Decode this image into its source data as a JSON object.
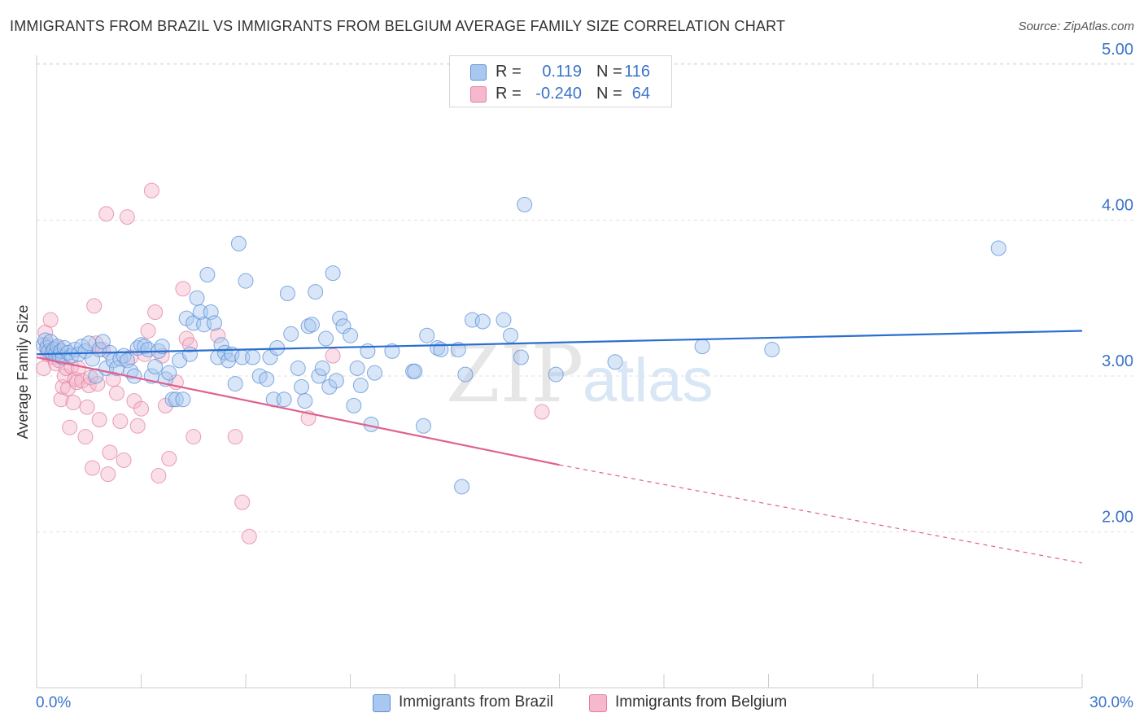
{
  "title": "IMMIGRANTS FROM BRAZIL VS IMMIGRANTS FROM BELGIUM AVERAGE FAMILY SIZE CORRELATION CHART",
  "source": "Source: ZipAtlas.com",
  "watermark": {
    "zip": "ZIP",
    "atlas": "atlas"
  },
  "colors": {
    "brazil_fill": "#a9c8f0",
    "brazil_stroke": "#5b8fd6",
    "brazil_line": "#2a6fcf",
    "belgium_fill": "#f5b8cc",
    "belgium_stroke": "#e27fa2",
    "belgium_line": "#e0608e",
    "axis_value": "#3a73c8",
    "grid": "#e2e2e2"
  },
  "legend": {
    "rows": [
      {
        "series": "brazil",
        "r_label": "R =",
        "r_value": "0.119",
        "n_label": "N =",
        "n_value": "116"
      },
      {
        "series": "belgium",
        "r_label": "R =",
        "r_value": "-0.240",
        "n_label": "N =",
        "n_value": "64"
      }
    ]
  },
  "chart_data": {
    "type": "scatter",
    "title": "IMMIGRANTS FROM BRAZIL VS IMMIGRANTS FROM BELGIUM AVERAGE FAMILY SIZE CORRELATION CHART",
    "xlabel": "",
    "ylabel": "Average Family Size",
    "xlim": [
      0,
      30
    ],
    "ylim": [
      1.0,
      5.1
    ],
    "x_tick_labels": [
      "0.0%",
      "30.0%"
    ],
    "y_ticks": [
      2.0,
      3.0,
      4.0,
      5.0
    ],
    "y_tick_labels": [
      "2.00",
      "3.00",
      "4.00",
      "5.00"
    ],
    "grid": true,
    "legend_position": "top-center",
    "series": [
      {
        "name": "Immigrants from Brazil",
        "color": "#5b8fd6",
        "trend": {
          "x": [
            0,
            30
          ],
          "y": [
            3.14,
            3.29
          ]
        },
        "points": [
          [
            0.2,
            3.2
          ],
          [
            0.25,
            3.23
          ],
          [
            0.3,
            3.18
          ],
          [
            0.35,
            3.16
          ],
          [
            0.4,
            3.22
          ],
          [
            0.45,
            3.15
          ],
          [
            0.5,
            3.17
          ],
          [
            0.55,
            3.14
          ],
          [
            0.6,
            3.19
          ],
          [
            0.65,
            3.13
          ],
          [
            0.7,
            3.16
          ],
          [
            0.75,
            3.12
          ],
          [
            0.8,
            3.18
          ],
          [
            0.9,
            3.15
          ],
          [
            1.0,
            3.13
          ],
          [
            1.1,
            3.17
          ],
          [
            1.2,
            3.14
          ],
          [
            1.3,
            3.19
          ],
          [
            1.4,
            3.16
          ],
          [
            1.5,
            3.21
          ],
          [
            1.6,
            3.11
          ],
          [
            1.7,
            3.0
          ],
          [
            1.8,
            3.17
          ],
          [
            1.9,
            3.22
          ],
          [
            2.0,
            3.05
          ],
          [
            2.1,
            3.15
          ],
          [
            2.2,
            3.1
          ],
          [
            2.3,
            3.05
          ],
          [
            2.4,
            3.11
          ],
          [
            2.5,
            3.13
          ],
          [
            2.6,
            3.1
          ],
          [
            2.7,
            3.03
          ],
          [
            2.8,
            3.0
          ],
          [
            2.9,
            3.18
          ],
          [
            3.0,
            3.2
          ],
          [
            3.1,
            3.19
          ],
          [
            3.2,
            3.17
          ],
          [
            3.3,
            3.0
          ],
          [
            3.4,
            3.06
          ],
          [
            3.5,
            3.16
          ],
          [
            3.6,
            3.19
          ],
          [
            3.7,
            2.98
          ],
          [
            3.8,
            3.02
          ],
          [
            3.9,
            2.85
          ],
          [
            4.0,
            2.85
          ],
          [
            4.1,
            3.1
          ],
          [
            4.2,
            2.85
          ],
          [
            4.3,
            3.37
          ],
          [
            4.4,
            3.14
          ],
          [
            4.5,
            3.34
          ],
          [
            4.6,
            3.5
          ],
          [
            4.7,
            3.41
          ],
          [
            4.8,
            3.33
          ],
          [
            4.9,
            3.65
          ],
          [
            5.0,
            3.41
          ],
          [
            5.1,
            3.34
          ],
          [
            5.2,
            3.12
          ],
          [
            5.3,
            3.2
          ],
          [
            5.4,
            3.15
          ],
          [
            5.5,
            3.1
          ],
          [
            5.6,
            3.14
          ],
          [
            5.7,
            2.95
          ],
          [
            5.8,
            3.85
          ],
          [
            5.9,
            3.12
          ],
          [
            6.0,
            3.61
          ],
          [
            6.2,
            3.12
          ],
          [
            6.4,
            3.0
          ],
          [
            6.6,
            2.98
          ],
          [
            6.7,
            3.12
          ],
          [
            6.8,
            2.85
          ],
          [
            6.9,
            3.18
          ],
          [
            7.1,
            2.85
          ],
          [
            7.2,
            3.53
          ],
          [
            7.3,
            3.27
          ],
          [
            7.5,
            3.05
          ],
          [
            7.6,
            2.93
          ],
          [
            7.7,
            2.84
          ],
          [
            7.8,
            3.32
          ],
          [
            7.9,
            3.33
          ],
          [
            8.0,
            3.54
          ],
          [
            8.1,
            3.0
          ],
          [
            8.2,
            3.05
          ],
          [
            8.3,
            3.24
          ],
          [
            8.4,
            2.93
          ],
          [
            8.5,
            3.66
          ],
          [
            8.6,
            2.97
          ],
          [
            8.7,
            3.37
          ],
          [
            8.8,
            3.32
          ],
          [
            9.0,
            3.26
          ],
          [
            9.1,
            2.81
          ],
          [
            9.2,
            3.05
          ],
          [
            9.3,
            2.94
          ],
          [
            9.5,
            3.16
          ],
          [
            9.6,
            2.69
          ],
          [
            9.7,
            3.02
          ],
          [
            10.2,
            3.16
          ],
          [
            10.8,
            3.03
          ],
          [
            10.85,
            3.03
          ],
          [
            11.2,
            3.26
          ],
          [
            11.5,
            3.18
          ],
          [
            11.6,
            3.17
          ],
          [
            12.1,
            3.17
          ],
          [
            12.2,
            2.29
          ],
          [
            12.3,
            3.01
          ],
          [
            12.5,
            3.36
          ],
          [
            12.8,
            3.35
          ],
          [
            13.6,
            3.26
          ],
          [
            13.9,
            3.12
          ],
          [
            14.0,
            4.1
          ],
          [
            14.9,
            3.01
          ],
          [
            16.6,
            3.09
          ],
          [
            19.1,
            3.19
          ],
          [
            21.1,
            3.17
          ],
          [
            27.6,
            3.82
          ],
          [
            11.1,
            2.68
          ],
          [
            13.4,
            3.36
          ]
        ]
      },
      {
        "name": "Immigrants from Belgium",
        "color": "#e27fa2",
        "trend": {
          "x": [
            0,
            15
          ],
          "y": [
            3.12,
            2.43
          ],
          "dashed_to": {
            "x": 30,
            "y": 1.8
          }
        },
        "points": [
          [
            0.2,
            3.05
          ],
          [
            0.25,
            3.28
          ],
          [
            0.3,
            3.2
          ],
          [
            0.35,
            3.15
          ],
          [
            0.4,
            3.36
          ],
          [
            0.5,
            3.12
          ],
          [
            0.55,
            3.08
          ],
          [
            0.6,
            3.18
          ],
          [
            0.65,
            3.1
          ],
          [
            0.7,
            2.85
          ],
          [
            0.75,
            2.93
          ],
          [
            0.8,
            3.0
          ],
          [
            0.85,
            3.05
          ],
          [
            0.9,
            2.92
          ],
          [
            0.95,
            2.67
          ],
          [
            1.0,
            3.06
          ],
          [
            1.05,
            2.83
          ],
          [
            1.1,
            2.98
          ],
          [
            1.15,
            2.96
          ],
          [
            1.2,
            3.05
          ],
          [
            1.3,
            2.97
          ],
          [
            1.4,
            2.61
          ],
          [
            1.45,
            2.8
          ],
          [
            1.5,
            2.94
          ],
          [
            1.55,
            2.99
          ],
          [
            1.6,
            2.41
          ],
          [
            1.65,
            3.45
          ],
          [
            1.7,
            3.21
          ],
          [
            1.75,
            2.95
          ],
          [
            1.8,
            2.72
          ],
          [
            1.9,
            3.17
          ],
          [
            2.0,
            4.04
          ],
          [
            2.05,
            2.37
          ],
          [
            2.1,
            2.51
          ],
          [
            2.2,
            2.98
          ],
          [
            2.3,
            2.89
          ],
          [
            2.4,
            2.71
          ],
          [
            2.5,
            2.46
          ],
          [
            2.6,
            4.02
          ],
          [
            2.7,
            3.12
          ],
          [
            2.8,
            2.84
          ],
          [
            2.9,
            2.68
          ],
          [
            3.0,
            2.79
          ],
          [
            3.1,
            3.14
          ],
          [
            3.2,
            3.29
          ],
          [
            3.3,
            4.19
          ],
          [
            3.4,
            3.41
          ],
          [
            3.5,
            2.36
          ],
          [
            3.6,
            3.13
          ],
          [
            3.7,
            2.81
          ],
          [
            3.8,
            2.47
          ],
          [
            4.0,
            2.96
          ],
          [
            4.2,
            3.56
          ],
          [
            4.3,
            3.24
          ],
          [
            4.4,
            3.2
          ],
          [
            4.5,
            2.61
          ],
          [
            5.2,
            3.26
          ],
          [
            5.7,
            2.61
          ],
          [
            5.9,
            2.19
          ],
          [
            6.1,
            1.97
          ],
          [
            7.8,
            2.73
          ],
          [
            14.5,
            2.77
          ],
          [
            8.5,
            3.13
          ],
          [
            0.3,
            3.14
          ]
        ]
      }
    ]
  },
  "bottom_legend": {
    "items": [
      {
        "series": "brazil",
        "label": "Immigrants from Brazil"
      },
      {
        "series": "belgium",
        "label": "Immigrants from Belgium"
      }
    ]
  }
}
